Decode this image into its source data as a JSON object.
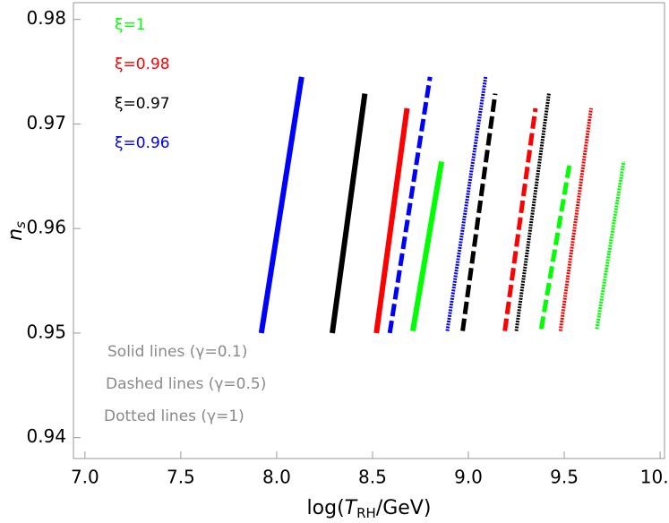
{
  "chart_data": {
    "type": "line",
    "xlabel": [
      "log(",
      "T",
      "RH",
      "/GeV)"
    ],
    "ylabel": [
      "n",
      "s"
    ],
    "xlim": [
      6.94,
      10.023
    ],
    "ylim": [
      0.938,
      0.9816
    ],
    "xticks": [
      {
        "value": 7,
        "label": "7.0"
      },
      7.5,
      {
        "value": 8,
        "label": "8.0"
      },
      8.5,
      {
        "value": 9,
        "label": "9.0"
      },
      9.5,
      {
        "value": 10,
        "label": "10.0"
      }
    ],
    "yticks": [
      0.94,
      0.95,
      0.96,
      0.97,
      0.98
    ],
    "legend": [
      {
        "label": "ξ=1",
        "color": "#00ff00"
      },
      {
        "label": "ξ=0.98",
        "color": "#ff0000"
      },
      {
        "label": "ξ=0.97",
        "color": "#000000"
      },
      {
        "label": "ξ=0.96",
        "color": "#0000ff"
      }
    ],
    "annotations": [
      "Solid lines (γ=0.1)",
      "Dashed lines (γ=0.5)",
      "Dotted lines (γ=1)"
    ],
    "series": [
      {
        "color": "#0000ff",
        "style": "solid",
        "x": [
          7.92,
          8.13
        ],
        "values": [
          0.95,
          0.9745
        ]
      },
      {
        "color": "#000000",
        "style": "solid",
        "x": [
          8.29,
          8.46
        ],
        "values": [
          0.95,
          0.9729
        ]
      },
      {
        "color": "#ff0000",
        "style": "solid",
        "x": [
          8.52,
          8.68
        ],
        "values": [
          0.95,
          0.9715
        ]
      },
      {
        "color": "#0000ff",
        "style": "dashed",
        "x": [
          8.59,
          8.8
        ],
        "values": [
          0.95,
          0.9745
        ]
      },
      {
        "color": "#00ff00",
        "style": "solid",
        "x": [
          8.71,
          8.86
        ],
        "values": [
          0.9502,
          0.9664
        ]
      },
      {
        "color": "#0000ff",
        "style": "dotted",
        "x": [
          8.89,
          9.09
        ],
        "values": [
          0.9502,
          0.9745
        ]
      },
      {
        "color": "#000000",
        "style": "dashed",
        "x": [
          8.97,
          9.14
        ],
        "values": [
          0.9502,
          0.9729
        ]
      },
      {
        "color": "#ff0000",
        "style": "dashed",
        "x": [
          9.19,
          9.35
        ],
        "values": [
          0.9502,
          0.9715
        ]
      },
      {
        "color": "#000000",
        "style": "dotted",
        "x": [
          9.25,
          9.42
        ],
        "values": [
          0.9502,
          0.9729
        ]
      },
      {
        "color": "#00ff00",
        "style": "dashed",
        "x": [
          9.38,
          9.53
        ],
        "values": [
          0.9504,
          0.9664
        ]
      },
      {
        "color": "#ff0000",
        "style": "dotted",
        "x": [
          9.48,
          9.64
        ],
        "values": [
          0.9502,
          0.9715
        ]
      },
      {
        "color": "#00ff00",
        "style": "dotted",
        "x": [
          9.67,
          9.81
        ],
        "values": [
          0.9504,
          0.9664
        ]
      }
    ]
  }
}
